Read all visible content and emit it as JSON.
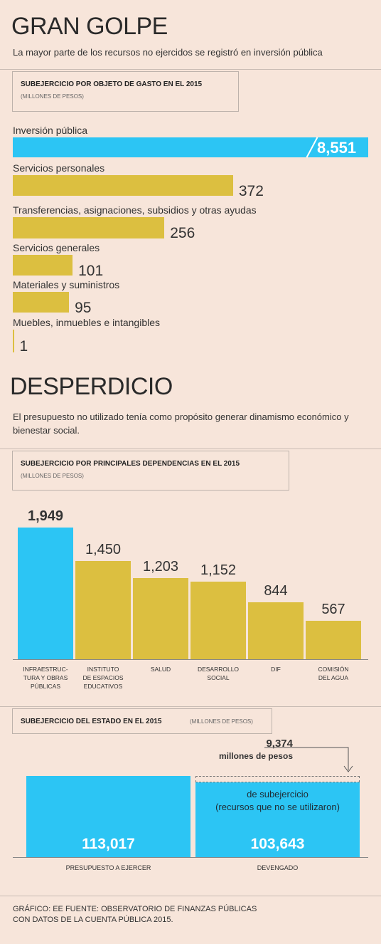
{
  "title1": "GRAN GOLPE",
  "subtitle1": "La mayor parte de los recursos no ejercidos se registró en inversión pública",
  "title2": "DESPERDICIO",
  "subtitle2": "El presupuesto no utilizado tenía como propósito generar dinamismo económico y bienestar social.",
  "source": "GRÁFICO: EE  FUENTE: OBSERVATORIO DE FINANZAS PÚBLICAS\nCON DATOS DE LA CUENTA PÚBLICA 2015.",
  "chart_data": [
    {
      "type": "barh",
      "title": "SUBEJERCICIO POR OBJETO DE GASTO EN EL 2015",
      "subtitle": "(MILLONES DE PESOS)",
      "categories": [
        "Inversión pública",
        "Servicios personales",
        "Transferencias, asignaciones, subsidios y otras ayudas",
        "Servicios generales",
        "Materiales y suministros",
        "Muebles, inmuebles e intangibles"
      ],
      "values": [
        8551,
        372,
        256,
        101,
        95,
        1
      ],
      "value_labels": [
        "8,551",
        "372",
        "256",
        "101",
        "95",
        "1"
      ],
      "colors": [
        "#2cc5f4",
        "#dcbf40",
        "#dcbf40",
        "#dcbf40",
        "#dcbf40",
        "#dcbf40"
      ]
    },
    {
      "type": "bar",
      "title": "SUBEJERCICIO POR PRINCIPALES DEPENDENCIAS EN EL 2015",
      "subtitle": "(MILLONES DE PESOS)",
      "categories": [
        "INFRAESTRUC-\nTURA Y OBRAS\nPÚBLICAS",
        "INSTITUTO\nDE ESPACIOS\nEDUCATIVOS",
        "SALUD",
        "DESARROLLO\nSOCIAL",
        "DIF",
        "COMISIÓN\nDEL AGUA"
      ],
      "values": [
        1949,
        1450,
        1203,
        1152,
        844,
        567
      ],
      "value_labels": [
        "1,949",
        "1,450",
        "1,203",
        "1,152",
        "844",
        "567"
      ],
      "colors": [
        "#2cc5f4",
        "#dcbf40",
        "#dcbf40",
        "#dcbf40",
        "#dcbf40",
        "#dcbf40"
      ]
    },
    {
      "type": "compare",
      "title": "SUBEJERCICIO DEL ESTADO EN EL 2015",
      "subtitle": "(MILLONES DE PESOS)",
      "categories": [
        "PRESUPUESTO A EJERCER",
        "DEVENGADO"
      ],
      "values": [
        113017,
        103643
      ],
      "value_labels": [
        "113,017",
        "103,643"
      ],
      "color": "#2cc5f4",
      "difference": {
        "value": 9374,
        "label": "9,374"
      },
      "difference_unit": "millones de pesos",
      "note": "de subejercicio\n(recursos que no se utilizaron)"
    }
  ]
}
